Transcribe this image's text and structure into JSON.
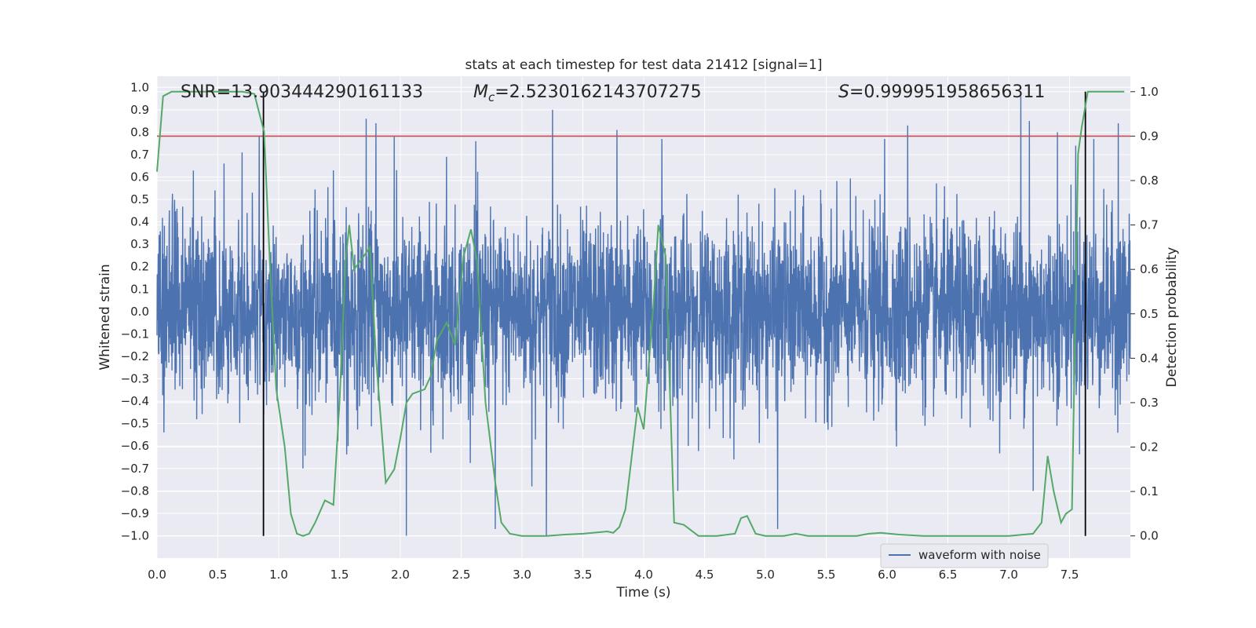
{
  "chart_data": {
    "type": "line",
    "title": "stats at each timestep for test data 21412 [signal=1]",
    "xlabel": "Time (s)",
    "ylabel": "Whitened strain",
    "y2label": "Detection probability",
    "xlim": [
      0,
      8
    ],
    "ylim": [
      -1.1,
      1.05
    ],
    "y2lim": [
      -0.05,
      1.035
    ],
    "xticks": [
      "0.0",
      "0.5",
      "1.0",
      "1.5",
      "2.0",
      "2.5",
      "3.0",
      "3.5",
      "4.0",
      "4.5",
      "5.0",
      "5.5",
      "6.0",
      "6.5",
      "7.0",
      "7.5"
    ],
    "yticks": [
      "1.0",
      "0.9",
      "0.8",
      "0.7",
      "0.6",
      "0.5",
      "0.4",
      "0.3",
      "0.2",
      "0.1",
      "0.0",
      "-0.1",
      "-0.2",
      "-0.3",
      "-0.4",
      "-0.5",
      "-0.6",
      "-0.7",
      "-0.8",
      "-0.9",
      "-1.0"
    ],
    "y2ticks": [
      "1.0",
      "0.9",
      "0.8",
      "0.7",
      "0.6",
      "0.5",
      "0.4",
      "0.3",
      "0.2",
      "0.1",
      "0.0"
    ],
    "grid": true,
    "legend": {
      "placement": "lower-right",
      "label": "waveform with noise"
    },
    "annotations": {
      "snr": "SNR=13.903444290161133",
      "mc_value": "=2.5230162143707275",
      "s_value": "=0.999951958656311"
    },
    "threshold": {
      "value": 0.9,
      "axis": "right",
      "color": "#c44e52"
    },
    "vertical_markers": [
      0.875,
      7.63
    ],
    "colors": {
      "waveform": "#4c72b0",
      "probability": "#55a868",
      "background": "#eaeaf2",
      "grid": "#ffffff"
    },
    "probability_series": {
      "x": [
        0.0,
        0.05,
        0.12,
        0.2,
        0.3,
        0.4,
        0.5,
        0.6,
        0.7,
        0.8,
        0.88,
        0.93,
        0.98,
        1.05,
        1.1,
        1.15,
        1.2,
        1.25,
        1.3,
        1.38,
        1.45,
        1.5,
        1.55,
        1.58,
        1.62,
        1.7,
        1.75,
        1.8,
        1.88,
        1.95,
        2.0,
        2.05,
        2.1,
        2.2,
        2.25,
        2.3,
        2.38,
        2.45,
        2.52,
        2.58,
        2.63,
        2.7,
        2.78,
        2.83,
        2.9,
        3.0,
        3.2,
        3.35,
        3.5,
        3.7,
        3.75,
        3.8,
        3.85,
        3.95,
        4.0,
        4.08,
        4.12,
        4.18,
        4.25,
        4.33,
        4.45,
        4.6,
        4.75,
        4.8,
        4.85,
        4.92,
        5.0,
        5.15,
        5.25,
        5.35,
        5.5,
        5.75,
        5.85,
        5.95,
        6.1,
        6.3,
        6.5,
        6.8,
        7.0,
        7.2,
        7.27,
        7.32,
        7.37,
        7.43,
        7.47,
        7.52,
        7.57,
        7.6,
        7.65,
        7.7,
        7.75,
        7.85,
        7.95
      ],
      "y": [
        0.82,
        0.99,
        1.0,
        1.0,
        1.0,
        1.0,
        1.0,
        1.0,
        1.0,
        0.995,
        0.91,
        0.6,
        0.33,
        0.2,
        0.05,
        0.005,
        0.0,
        0.005,
        0.03,
        0.08,
        0.07,
        0.3,
        0.62,
        0.7,
        0.6,
        0.63,
        0.65,
        0.4,
        0.12,
        0.15,
        0.22,
        0.3,
        0.32,
        0.33,
        0.36,
        0.44,
        0.48,
        0.43,
        0.63,
        0.69,
        0.62,
        0.3,
        0.12,
        0.03,
        0.005,
        0.0,
        0.0,
        0.003,
        0.005,
        0.01,
        0.007,
        0.02,
        0.06,
        0.29,
        0.24,
        0.52,
        0.7,
        0.63,
        0.03,
        0.025,
        0.0,
        0.0,
        0.005,
        0.04,
        0.045,
        0.005,
        0.0,
        0.0,
        0.005,
        0.0,
        0.0,
        0.0,
        0.005,
        0.007,
        0.003,
        0.0,
        0.0,
        0.0,
        0.0,
        0.005,
        0.03,
        0.18,
        0.1,
        0.03,
        0.05,
        0.06,
        0.86,
        0.92,
        1.0,
        1.0,
        1.0,
        1.0,
        1.0
      ]
    },
    "waveform_series": {
      "note_seed": 21412,
      "n_points": 4096,
      "duration": 8,
      "noise_sigma": 0.2,
      "peaks": [
        {
          "t": 0.84,
          "v": 0.78
        },
        {
          "t": 0.55,
          "v": 0.66
        },
        {
          "t": 0.7,
          "v": 0.71
        },
        {
          "t": 1.45,
          "v": 0.63
        },
        {
          "t": 1.57,
          "v": -0.6
        },
        {
          "t": 1.72,
          "v": 0.86
        },
        {
          "t": 1.8,
          "v": 0.84
        },
        {
          "t": 1.95,
          "v": 0.78
        },
        {
          "t": 2.05,
          "v": -1.0
        },
        {
          "t": 2.38,
          "v": 0.69
        },
        {
          "t": 2.62,
          "v": 0.76
        },
        {
          "t": 2.78,
          "v": -0.97
        },
        {
          "t": 3.08,
          "v": -0.78
        },
        {
          "t": 3.2,
          "v": -1.0
        },
        {
          "t": 3.25,
          "v": 0.9
        },
        {
          "t": 3.78,
          "v": 0.81
        },
        {
          "t": 4.15,
          "v": 0.77
        },
        {
          "t": 4.28,
          "v": -0.8
        },
        {
          "t": 5.1,
          "v": -0.97
        },
        {
          "t": 5.98,
          "v": 0.77
        },
        {
          "t": 6.17,
          "v": 0.83
        },
        {
          "t": 7.1,
          "v": 0.96
        },
        {
          "t": 7.17,
          "v": 0.85
        },
        {
          "t": 7.4,
          "v": 0.8
        },
        {
          "t": 7.55,
          "v": 0.74
        },
        {
          "t": 7.7,
          "v": 0.77
        },
        {
          "t": 7.9,
          "v": 0.84
        },
        {
          "t": 7.2,
          "v": -0.8
        },
        {
          "t": 2.25,
          "v": -0.63
        },
        {
          "t": 1.2,
          "v": -0.7
        }
      ]
    }
  }
}
